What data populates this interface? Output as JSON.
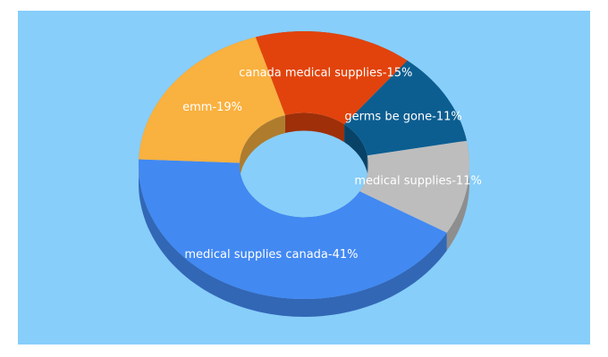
{
  "chart_data": {
    "type": "donut3d",
    "categories": [
      "canada medical supplies",
      "germs be gone",
      "medical supplies",
      "medical supplies canada",
      "emm"
    ],
    "values": [
      15,
      11,
      11,
      41,
      19
    ],
    "value_labels": [
      "canada medical supplies-15%",
      "germs be gone-11%",
      "medical supplies-11%",
      "medical supplies canada-41%",
      "emm-19%"
    ],
    "colors": [
      "#e2430c",
      "#0c5e91",
      "#bdbdbd",
      "#4289f2",
      "#f9b13f"
    ]
  }
}
